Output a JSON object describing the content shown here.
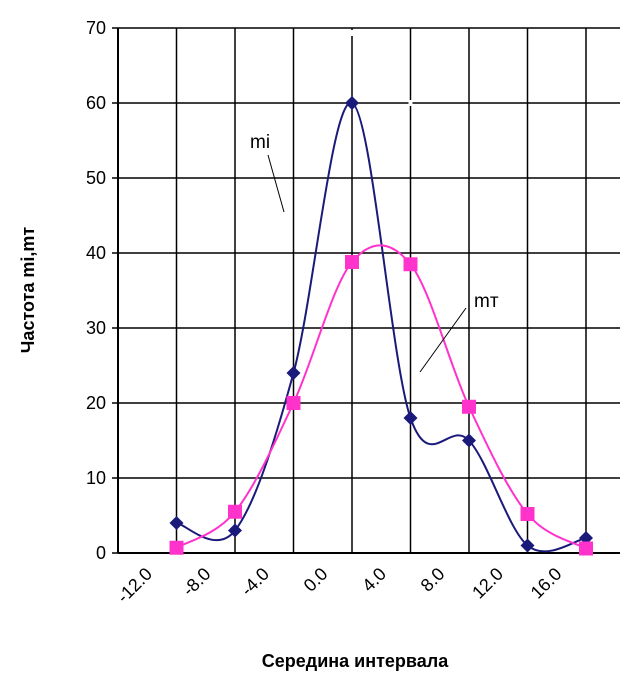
{
  "chart_data": {
    "type": "line",
    "xlabel": "Середина интервала",
    "ylabel": "Частота mi,mт",
    "ylim": [
      0,
      70
    ],
    "yticks": [
      "0",
      "10",
      "20",
      "30",
      "40",
      "50",
      "60",
      "70"
    ],
    "xtick_labels": [
      "-12.0",
      "-8.0",
      "-4.0",
      "0.0",
      "4.0",
      "8.0",
      "12.0",
      "16.0"
    ],
    "grid": true,
    "series": [
      {
        "name": "mi",
        "color": "#1a1a7a",
        "marker": "diamond",
        "x": [
          -10,
          -6,
          -2,
          2,
          6,
          10,
          14,
          18
        ],
        "values": [
          4,
          3,
          24,
          60,
          18,
          15,
          1,
          2
        ]
      },
      {
        "name": "mт",
        "color": "#ff33cc",
        "marker": "square",
        "x": [
          -10,
          -6,
          -2,
          2,
          6,
          10,
          14,
          18
        ],
        "values": [
          0.7,
          5.5,
          20,
          38.8,
          38.5,
          19.5,
          5.2,
          0.6
        ]
      }
    ]
  }
}
